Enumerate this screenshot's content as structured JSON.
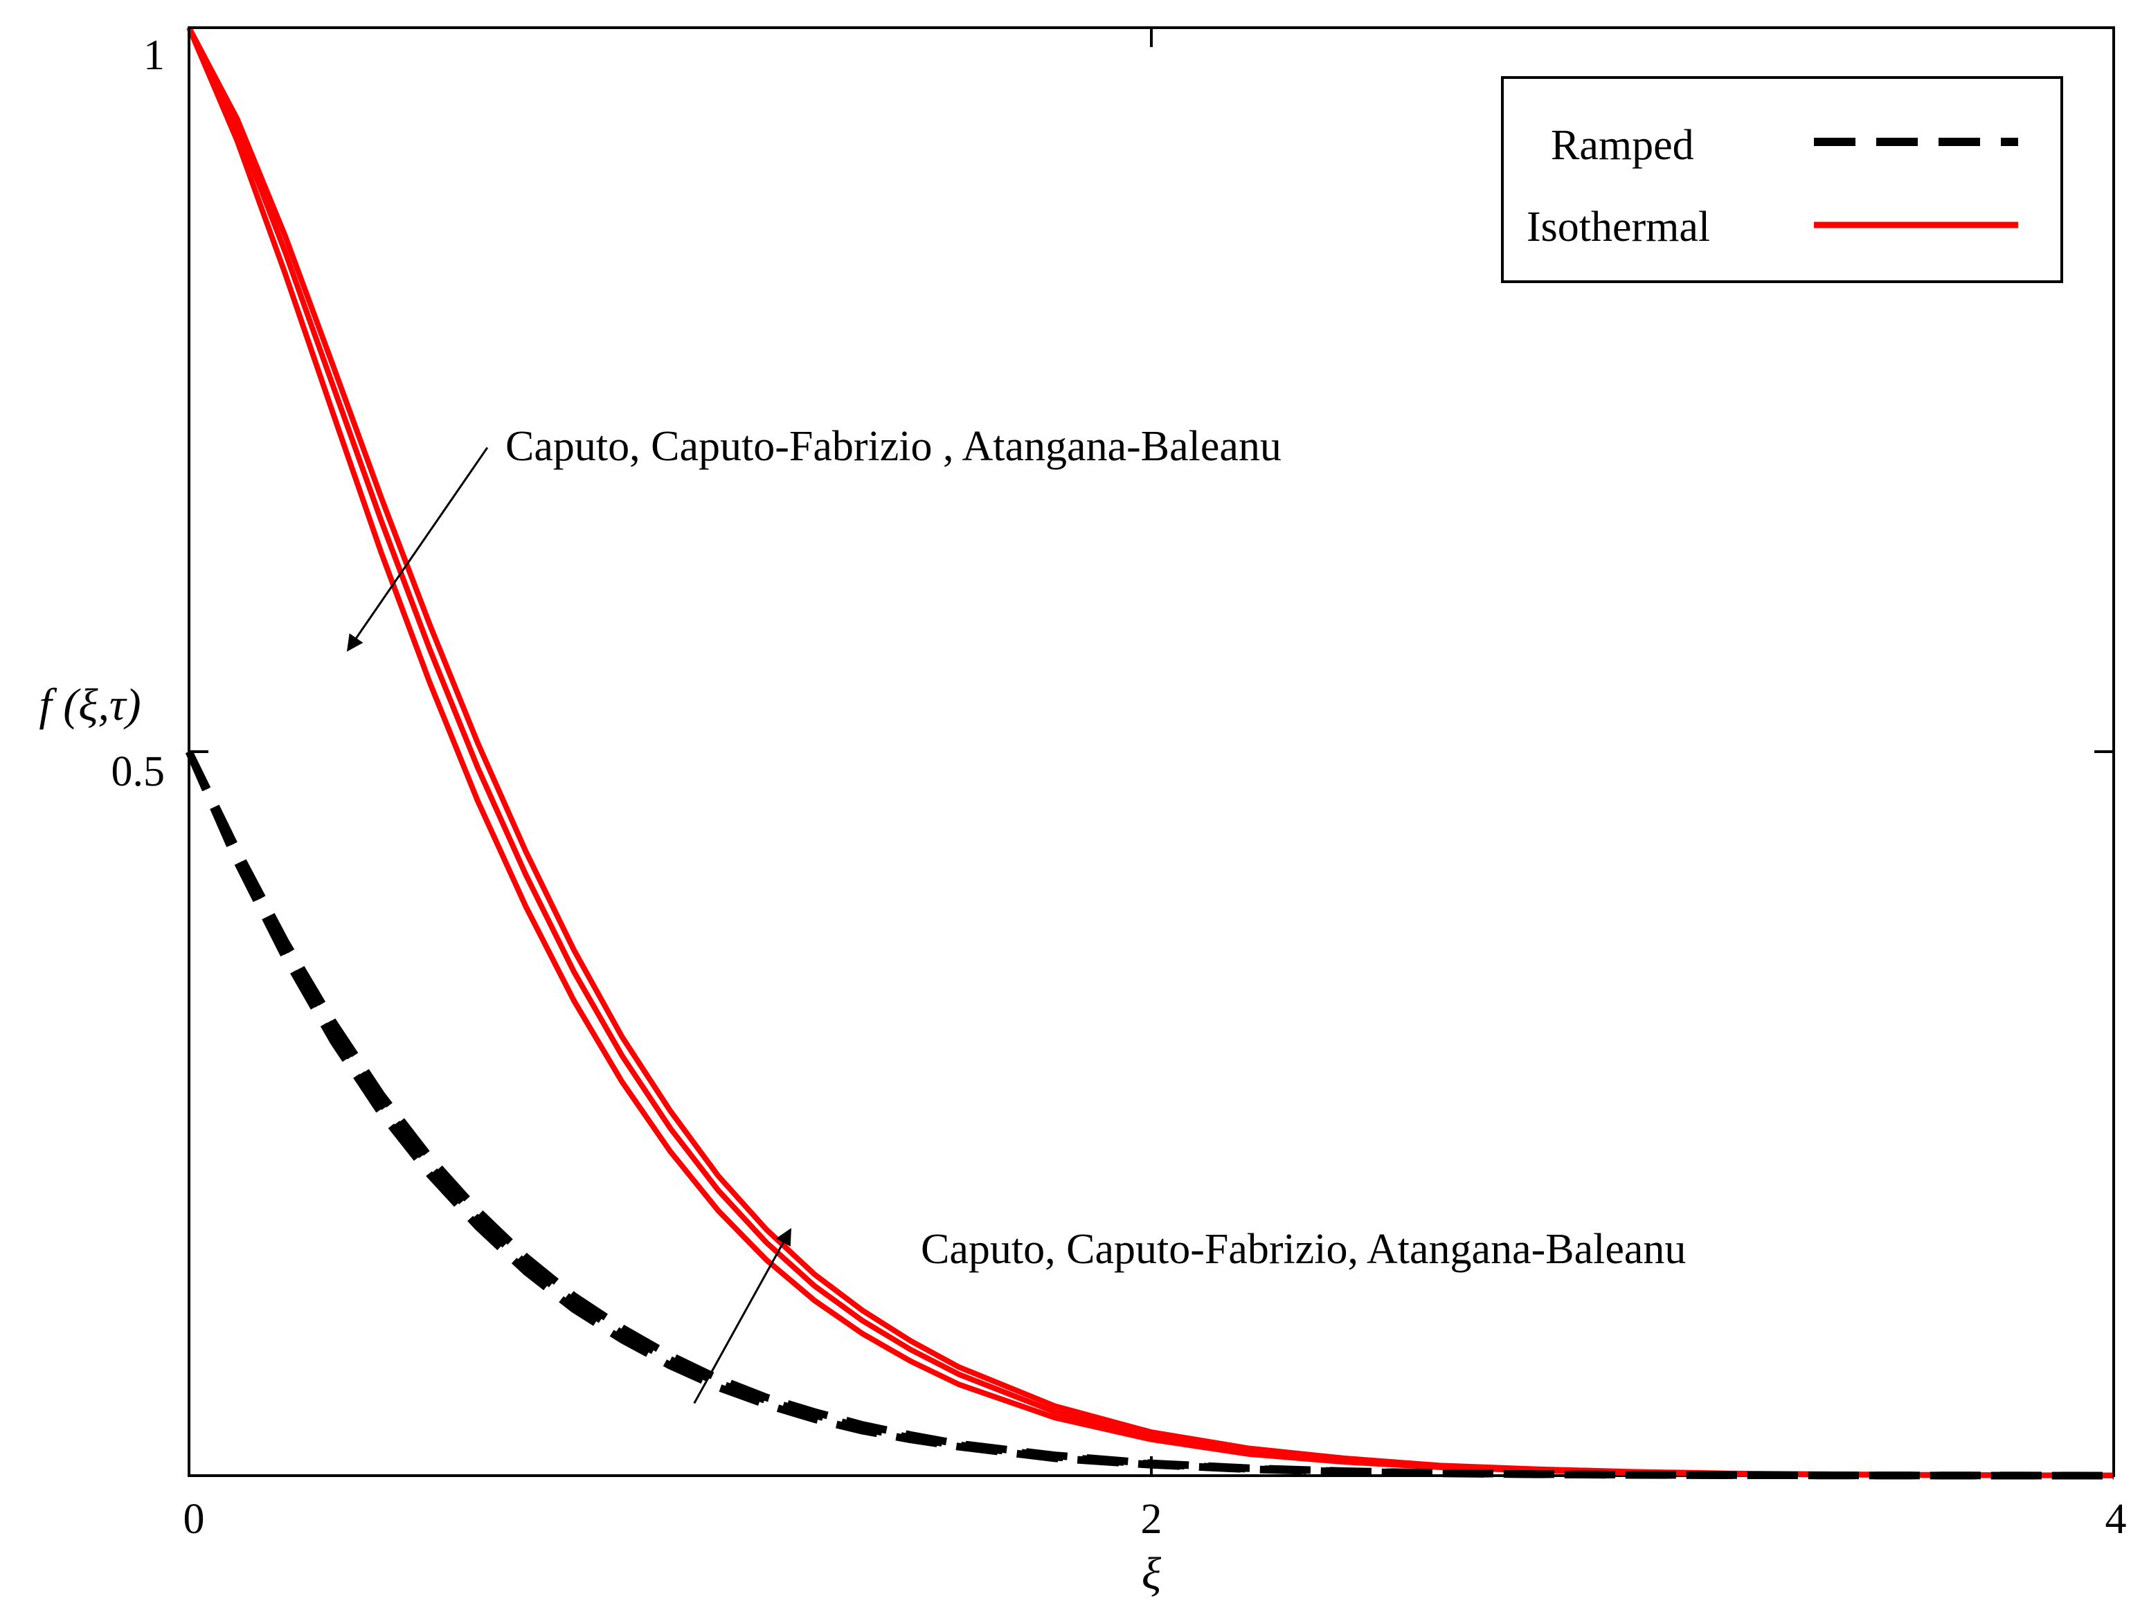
{
  "chart_data": {
    "type": "line",
    "title": "",
    "xlabel": "ξ",
    "ylabel": "f (ξ,τ)",
    "xlim": [
      0,
      4
    ],
    "ylim": [
      0,
      1
    ],
    "x_ticks": [
      {
        "value": 0,
        "label": "0"
      },
      {
        "value": 2,
        "label": "2"
      },
      {
        "value": 4,
        "label": "4"
      }
    ],
    "y_ticks": [
      {
        "value": 0.5,
        "label": "0.5"
      },
      {
        "value": 1,
        "label": "1"
      }
    ],
    "legend": {
      "position": "top-right",
      "entries": [
        {
          "label": "Ramped",
          "style": "dashed",
          "color": "#000000"
        },
        {
          "label": "Isothermal",
          "style": "solid",
          "color": "#ff0000"
        }
      ]
    },
    "series": [
      {
        "name": "Isothermal (Caputo)",
        "group": "Isothermal",
        "color": "#ff0000",
        "style": "solid",
        "x": [
          0,
          0.1,
          0.2,
          0.3,
          0.4,
          0.5,
          0.6,
          0.7,
          0.8,
          0.9,
          1.0,
          1.1,
          1.2,
          1.3,
          1.4,
          1.5,
          1.6,
          1.8,
          2.0,
          2.2,
          2.4,
          2.6,
          2.8,
          3.0,
          3.2,
          3.4,
          3.6,
          3.8,
          4.0
        ],
        "values": [
          1.0,
          0.937,
          0.856,
          0.766,
          0.675,
          0.588,
          0.506,
          0.431,
          0.363,
          0.303,
          0.252,
          0.207,
          0.17,
          0.139,
          0.114,
          0.093,
          0.075,
          0.048,
          0.03,
          0.019,
          0.012,
          0.007,
          0.0045,
          0.0027,
          0.0016,
          0.001,
          0.0006,
          0.0003,
          0.0002
        ]
      },
      {
        "name": "Isothermal (Caputo-Fabrizio)",
        "group": "Isothermal",
        "color": "#ff0000",
        "style": "solid",
        "x": [
          0,
          0.1,
          0.2,
          0.3,
          0.4,
          0.5,
          0.6,
          0.7,
          0.8,
          0.9,
          1.0,
          1.1,
          1.2,
          1.3,
          1.4,
          1.5,
          1.6,
          1.8,
          2.0,
          2.2,
          2.4,
          2.6,
          2.8,
          3.0,
          3.2,
          3.4,
          3.6,
          3.8,
          4.0
        ],
        "values": [
          1.0,
          0.931,
          0.845,
          0.752,
          0.659,
          0.571,
          0.489,
          0.415,
          0.348,
          0.29,
          0.24,
          0.197,
          0.161,
          0.131,
          0.107,
          0.087,
          0.07,
          0.044,
          0.028,
          0.017,
          0.011,
          0.0065,
          0.004,
          0.0024,
          0.0014,
          0.0009,
          0.0005,
          0.0003,
          0.0002
        ]
      },
      {
        "name": "Isothermal (Atangana-Baleanu)",
        "group": "Isothermal",
        "color": "#ff0000",
        "style": "solid",
        "x": [
          0,
          0.1,
          0.2,
          0.3,
          0.4,
          0.5,
          0.6,
          0.7,
          0.8,
          0.9,
          1.0,
          1.1,
          1.2,
          1.3,
          1.4,
          1.5,
          1.6,
          1.8,
          2.0,
          2.2,
          2.4,
          2.6,
          2.8,
          3.0,
          3.2,
          3.4,
          3.6,
          3.8,
          4.0
        ],
        "values": [
          1.0,
          0.922,
          0.83,
          0.733,
          0.637,
          0.548,
          0.466,
          0.393,
          0.328,
          0.272,
          0.224,
          0.183,
          0.149,
          0.121,
          0.098,
          0.079,
          0.063,
          0.04,
          0.025,
          0.015,
          0.0095,
          0.0058,
          0.0035,
          0.0021,
          0.0012,
          0.0007,
          0.0004,
          0.0002,
          0.0001
        ]
      },
      {
        "name": "Ramped (Caputo)",
        "group": "Ramped",
        "color": "#000000",
        "style": "dashed",
        "x": [
          0,
          0.1,
          0.2,
          0.3,
          0.4,
          0.5,
          0.6,
          0.7,
          0.8,
          0.9,
          1.0,
          1.1,
          1.2,
          1.3,
          1.4,
          1.5,
          1.6,
          1.8,
          2.0,
          2.2,
          2.4,
          2.6,
          2.8,
          3.0,
          3.2,
          3.4,
          3.6,
          3.8,
          4.0
        ],
        "values": [
          0.5,
          0.432,
          0.369,
          0.313,
          0.263,
          0.22,
          0.183,
          0.151,
          0.124,
          0.102,
          0.083,
          0.067,
          0.054,
          0.044,
          0.035,
          0.028,
          0.022,
          0.014,
          0.0085,
          0.0052,
          0.0031,
          0.0018,
          0.0011,
          0.0006,
          0.0004,
          0.0002,
          0.0001,
          0.0001,
          0.0
        ]
      },
      {
        "name": "Ramped (Caputo-Fabrizio)",
        "group": "Ramped",
        "color": "#000000",
        "style": "dashed",
        "x": [
          0,
          0.1,
          0.2,
          0.3,
          0.4,
          0.5,
          0.6,
          0.7,
          0.8,
          0.9,
          1.0,
          1.1,
          1.2,
          1.3,
          1.4,
          1.5,
          1.6,
          1.8,
          2.0,
          2.2,
          2.4,
          2.6,
          2.8,
          3.0,
          3.2,
          3.4,
          3.6,
          3.8,
          4.0
        ],
        "values": [
          0.5,
          0.428,
          0.364,
          0.307,
          0.257,
          0.214,
          0.177,
          0.146,
          0.12,
          0.098,
          0.08,
          0.064,
          0.052,
          0.042,
          0.033,
          0.026,
          0.021,
          0.013,
          0.008,
          0.0048,
          0.0029,
          0.0017,
          0.001,
          0.0006,
          0.0003,
          0.0002,
          0.0001,
          0.0,
          0.0
        ]
      },
      {
        "name": "Ramped (Atangana-Baleanu)",
        "group": "Ramped",
        "color": "#000000",
        "style": "dashed",
        "x": [
          0,
          0.1,
          0.2,
          0.3,
          0.4,
          0.5,
          0.6,
          0.7,
          0.8,
          0.9,
          1.0,
          1.1,
          1.2,
          1.3,
          1.4,
          1.5,
          1.6,
          1.8,
          2.0,
          2.2,
          2.4,
          2.6,
          2.8,
          3.0,
          3.2,
          3.4,
          3.6,
          3.8,
          4.0
        ],
        "values": [
          0.5,
          0.424,
          0.358,
          0.3,
          0.25,
          0.208,
          0.172,
          0.141,
          0.115,
          0.094,
          0.076,
          0.061,
          0.049,
          0.039,
          0.031,
          0.025,
          0.02,
          0.012,
          0.0075,
          0.0045,
          0.0027,
          0.0016,
          0.0009,
          0.0005,
          0.0003,
          0.0002,
          0.0001,
          0.0,
          0.0
        ]
      }
    ],
    "annotations": [
      {
        "id": "upper",
        "text": "Caputo, Caputo-Fabrizio , Atangana-Baleanu",
        "arrow_from": [
          0.62,
          0.71
        ],
        "arrow_to": [
          0.33,
          0.57
        ]
      },
      {
        "id": "lower",
        "text": "Caputo, Caputo-Fabrizio, Atangana-Baleanu",
        "arrow_from": [
          1.05,
          0.05
        ],
        "arrow_to": [
          1.25,
          0.17
        ]
      }
    ]
  }
}
